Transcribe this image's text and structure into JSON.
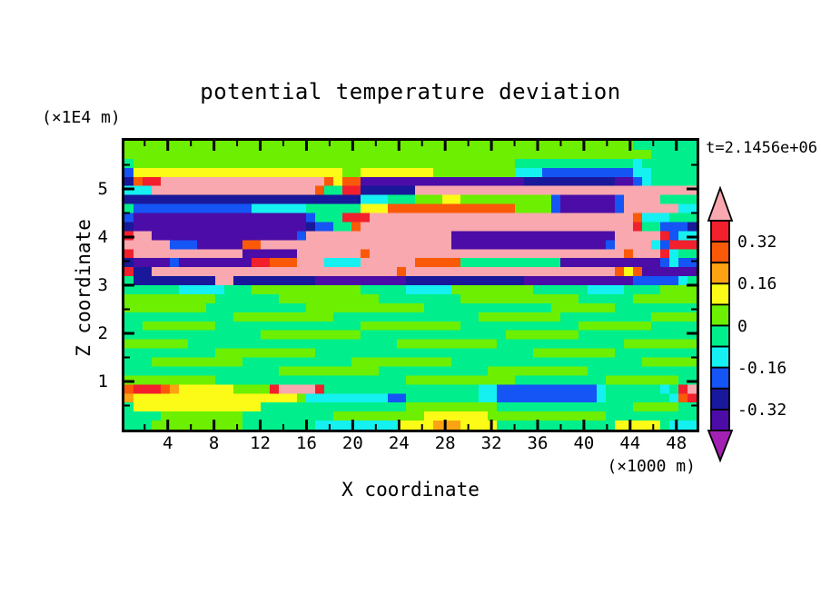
{
  "title": "potential temperature deviation",
  "annotations": {
    "time_label": "t=2.1456e+06",
    "z_axis_unit": "(×1E4 m)",
    "x_axis_unit": "(×1000 m)"
  },
  "axes": {
    "x": {
      "label": "X coordinate",
      "unit": "(×1000 m)",
      "range": [
        0.25,
        49.75
      ],
      "major_ticks": [
        4,
        8,
        12,
        16,
        20,
        24,
        28,
        32,
        36,
        40,
        44,
        48
      ],
      "tick_labels": [
        "4",
        "8",
        "12",
        "16",
        "20",
        "24",
        "28",
        "32",
        "36",
        "40",
        "44",
        "48"
      ],
      "minor_ticks": [
        2,
        6,
        10,
        14,
        18,
        22,
        26,
        30,
        34,
        38,
        42,
        46
      ]
    },
    "z": {
      "label": "Z coordinate",
      "unit": "(×1E4 m)",
      "range": [
        0,
        6
      ],
      "major_ticks": [
        1,
        2,
        3,
        4,
        5
      ],
      "tick_labels": [
        "1",
        "2",
        "3",
        "4",
        "5"
      ],
      "minor_ticks": [
        0.5,
        1.5,
        2.5,
        3.5,
        4.5,
        5.5
      ]
    }
  },
  "chart_data": {
    "type": "filled_contour",
    "title": "potential temperature deviation",
    "time": "t=2.1456e+06",
    "xlabel": "X coordinate (×1000 m)",
    "ylabel": "Z coordinate (×1E4 m)",
    "xlim": [
      0.25,
      49.75
    ],
    "ylim": [
      0,
      6
    ],
    "contour_interval": 0.08,
    "levels": [
      -0.4,
      -0.32,
      -0.24,
      -0.16,
      -0.08,
      0,
      0.08,
      0.16,
      0.24,
      0.32,
      0.4
    ],
    "colorbar": {
      "cells": [
        {
          "min": 0.32,
          "max": 0.4,
          "color": "#F1202C"
        },
        {
          "min": 0.24,
          "max": 0.32,
          "color": "#FA5A08"
        },
        {
          "min": 0.16,
          "max": 0.24,
          "color": "#FBA312"
        },
        {
          "min": 0.08,
          "max": 0.16,
          "color": "#FBFB17"
        },
        {
          "min": 0,
          "max": 0.08,
          "color": "#6CEF00"
        },
        {
          "min": -0.08,
          "max": 0,
          "color": "#00EF8C"
        },
        {
          "min": -0.16,
          "max": -0.08,
          "color": "#15F0F0"
        },
        {
          "min": -0.24,
          "max": -0.16,
          "color": "#1554F5"
        },
        {
          "min": -0.32,
          "max": -0.24,
          "color": "#1A189A"
        },
        {
          "min": -0.4,
          "max": -0.32,
          "color": "#4C0CA7"
        }
      ],
      "over_color": "#F8A8AE",
      "under_color": "#A321B2",
      "labels": [
        {
          "text": "0.32",
          "value": 0.32
        },
        {
          "text": "0.16",
          "value": 0.16
        },
        {
          "text": "0",
          "value": 0
        },
        {
          "text": "-0.16",
          "value": -0.16
        },
        {
          "text": "-0.32",
          "value": -0.32
        }
      ]
    },
    "grid": {
      "cols": 63,
      "rows": 32,
      "palette": {
        "0": "#6CEF00",
        "1": "#00EF8C",
        "2": "#FBFB17",
        "3": "#FBA312",
        "4": "#FA5A08",
        "5": "#F1202C",
        "6": "#F8A8AE",
        "7": "#15F0F0",
        "8": "#1554F5",
        "9": "#1A189A",
        "a": "#4C0CA7",
        "b": "#A321B2"
      },
      "cells": [
        "000000000000000000000000000000000000000000000000000000001111111",
        "000000000000000000000000000000000000000000000000000000000011111",
        "100000000000000000000000000000000000000000011111111111117111111",
        "822222222222222222222222002222222200000000077788888888887711111",
        "94556666666666666666664244aaaaaaaaaaaaaaaaaa9999999999aa8711111",
        "777666666666666666666411559999996666666666666666666666666666666",
        "999999999999999999999999997771110002200000000008aaaaaa866661111",
        "188888888888887777771111112224444444444444400008aaaaaa866666677",
        "8aaaaaaaaaaaaaaaaaaa811155566666666666666666666666666666 4777111",
        "9aaaaaaaaaaaaaaaaaaa98811466666666666666666666666666666651188 89",
        "566aaaaaaaaaaaaaaaa86666666666666666aaaaaaaaaaaaaaaaaa666665877",
        "66666888aaaaa44666666666666666666666aaaaaaaaaaaaaaaaa8666678555",
        "566666666666 6aaaaaa666666646666666666666666666666666666466657 1",
        "9aaaa8aaaaaaaa5544466677776666664444411111111111aaaaaaaaaaa8788 8",
        "599666666666666666666666666666466666666666666666666666424aaaaaa8",
        "199999999966999999999aaaaaaaaaa9999999999999aaaaaaaaaaaa8888871",
        "111111777771110000000000001111177777000000000111111777711110000",
        "000000000011111110000000000011111111100000000000001111110000000",
        "000000000111111111110000000000000111111111111110000000111111111",
        "111111111111000000000001111111111111111000000000111111111100000",
        "110000000011111111111111110000000000011111111111110000000011111",
        "111111111111111000000000001111111111111111000000001111111111111",
        "000000011111111111111111111111000000000001111111111111100000000",
        "111111111100000000000111111111111111111111111000000000111111111",
        "111000000000011111111111100000000000111111111111111111111000000",
        "111111111111111110000000000011111111111100000000000111111111111",
        "000000000011111111111111111111100000000000011111111110000000011",
        "455543222222000056666511111111111111111778888888888871111117156",
        "322222222222222222207777777778811111111778888888888871111111745",
        "122222222222222111111111111111100000000001111111111111110000011",
        "111100000000011111111110000000000222222200000000000001111111111",
        "111000000000011111111777777777222233322221111111111111222221777"
      ]
    },
    "description": "Filled contour cross-section (x vs z) of potential temperature deviation at t=2.1456e+06 s. Strong layered turbulent bands of positive (pink/red/orange) and negative (blue/navy/purple) deviation between z≈3.5 and z≈5.3 (×1E4 m), near-zero green field through the middle, and thin positive/negative streaks near z≈0.6."
  }
}
